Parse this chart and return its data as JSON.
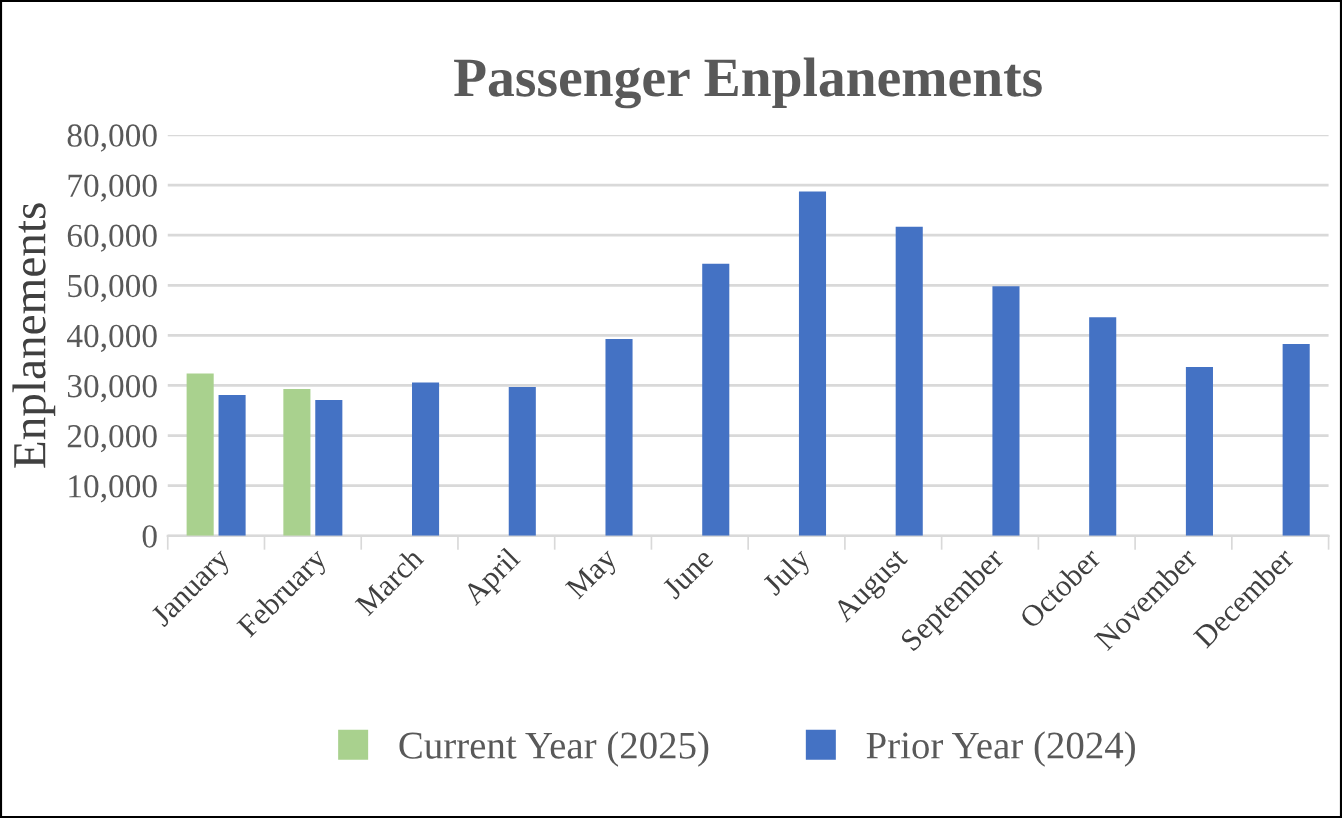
{
  "chart_data": {
    "type": "bar",
    "title": "Passenger Enplanements",
    "ylabel": "Enplanements",
    "categories": [
      "January",
      "February",
      "March",
      "April",
      "May",
      "June",
      "July",
      "August",
      "September",
      "October",
      "November",
      "December"
    ],
    "series": [
      {
        "name": "Current Year (2025)",
        "color": "#a9d18e",
        "values": [
          32400,
          29300,
          null,
          null,
          null,
          null,
          null,
          null,
          null,
          null,
          null,
          null
        ]
      },
      {
        "name": "Prior Year (2024)",
        "color": "#4472c4",
        "values": [
          28100,
          27100,
          30600,
          29700,
          39300,
          54300,
          68700,
          61700,
          49800,
          43600,
          33700,
          38300
        ]
      }
    ],
    "ylim": [
      0,
      80000
    ],
    "yticks": [
      {
        "value": 0,
        "label": "0"
      },
      {
        "value": 10000,
        "label": "10,000"
      },
      {
        "value": 20000,
        "label": "20,000"
      },
      {
        "value": 30000,
        "label": "30,000"
      },
      {
        "value": 40000,
        "label": "40,000"
      },
      {
        "value": 50000,
        "label": "50,000"
      },
      {
        "value": 60000,
        "label": "60,000"
      },
      {
        "value": 70000,
        "label": "70,000"
      },
      {
        "value": 80000,
        "label": "80,000"
      }
    ],
    "grid": "y",
    "legend": "bottom"
  }
}
